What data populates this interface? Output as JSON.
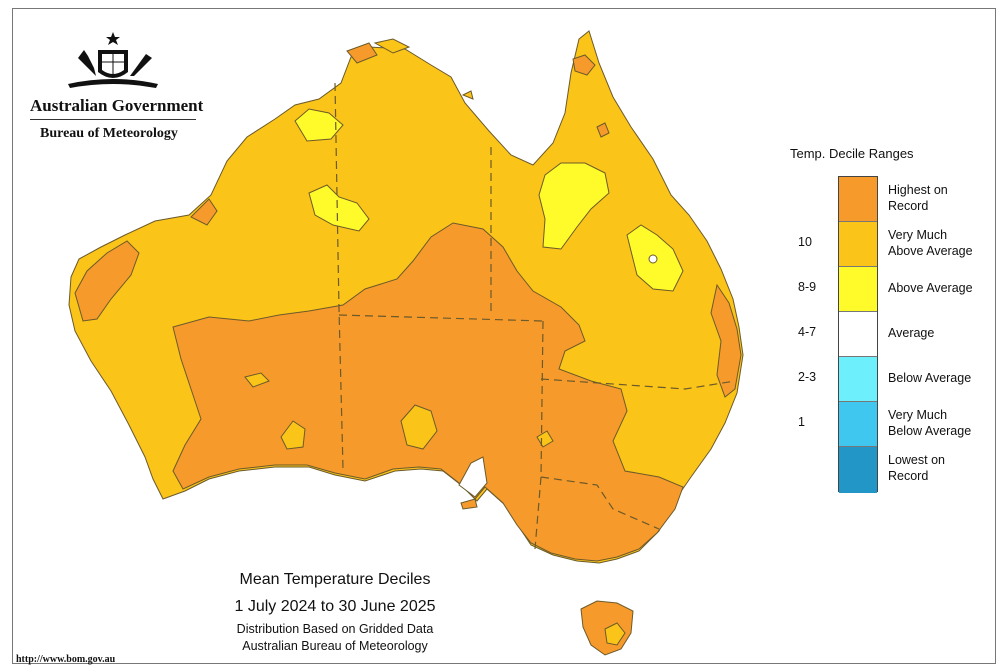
{
  "header": {
    "government": "Australian Government",
    "bureau": "Bureau of Meteorology"
  },
  "logo": {
    "icon": "coat-of-arms-icon"
  },
  "legend": {
    "title": "Temp. Decile Ranges",
    "items": [
      {
        "label1": "Highest on",
        "label2": "Record",
        "range": "",
        "color": "#f79a2c"
      },
      {
        "label1": "Very Much",
        "label2": "Above Average",
        "range": "10",
        "color": "#fbc419"
      },
      {
        "label1": "Above Average",
        "label2": "",
        "range": "8-9",
        "color": "#fffb2a"
      },
      {
        "label1": "Average",
        "label2": "",
        "range": "4-7",
        "color": "#ffffff"
      },
      {
        "label1": "Below Average",
        "label2": "",
        "range": "2-3",
        "color": "#6df0fb"
      },
      {
        "label1": "Very Much",
        "label2": "Below Average",
        "range": "1",
        "color": "#3fc7ef"
      },
      {
        "label1": "Lowest on",
        "label2": "Record",
        "range": "",
        "color": "#2297c7"
      }
    ]
  },
  "caption": {
    "line1": "Mean Temperature Deciles",
    "line2": "1 July 2024 to 30 June 2025",
    "line3": "Distribution Based on Gridded Data",
    "line4": "Australian Bureau of Meteorology"
  },
  "footer": {
    "url": "http://www.bom.gov.au"
  },
  "colors": {
    "highest": "#f79a2c",
    "very_much_above": "#fbc419",
    "above": "#fffb2a",
    "outline": "#6b5a2a"
  }
}
